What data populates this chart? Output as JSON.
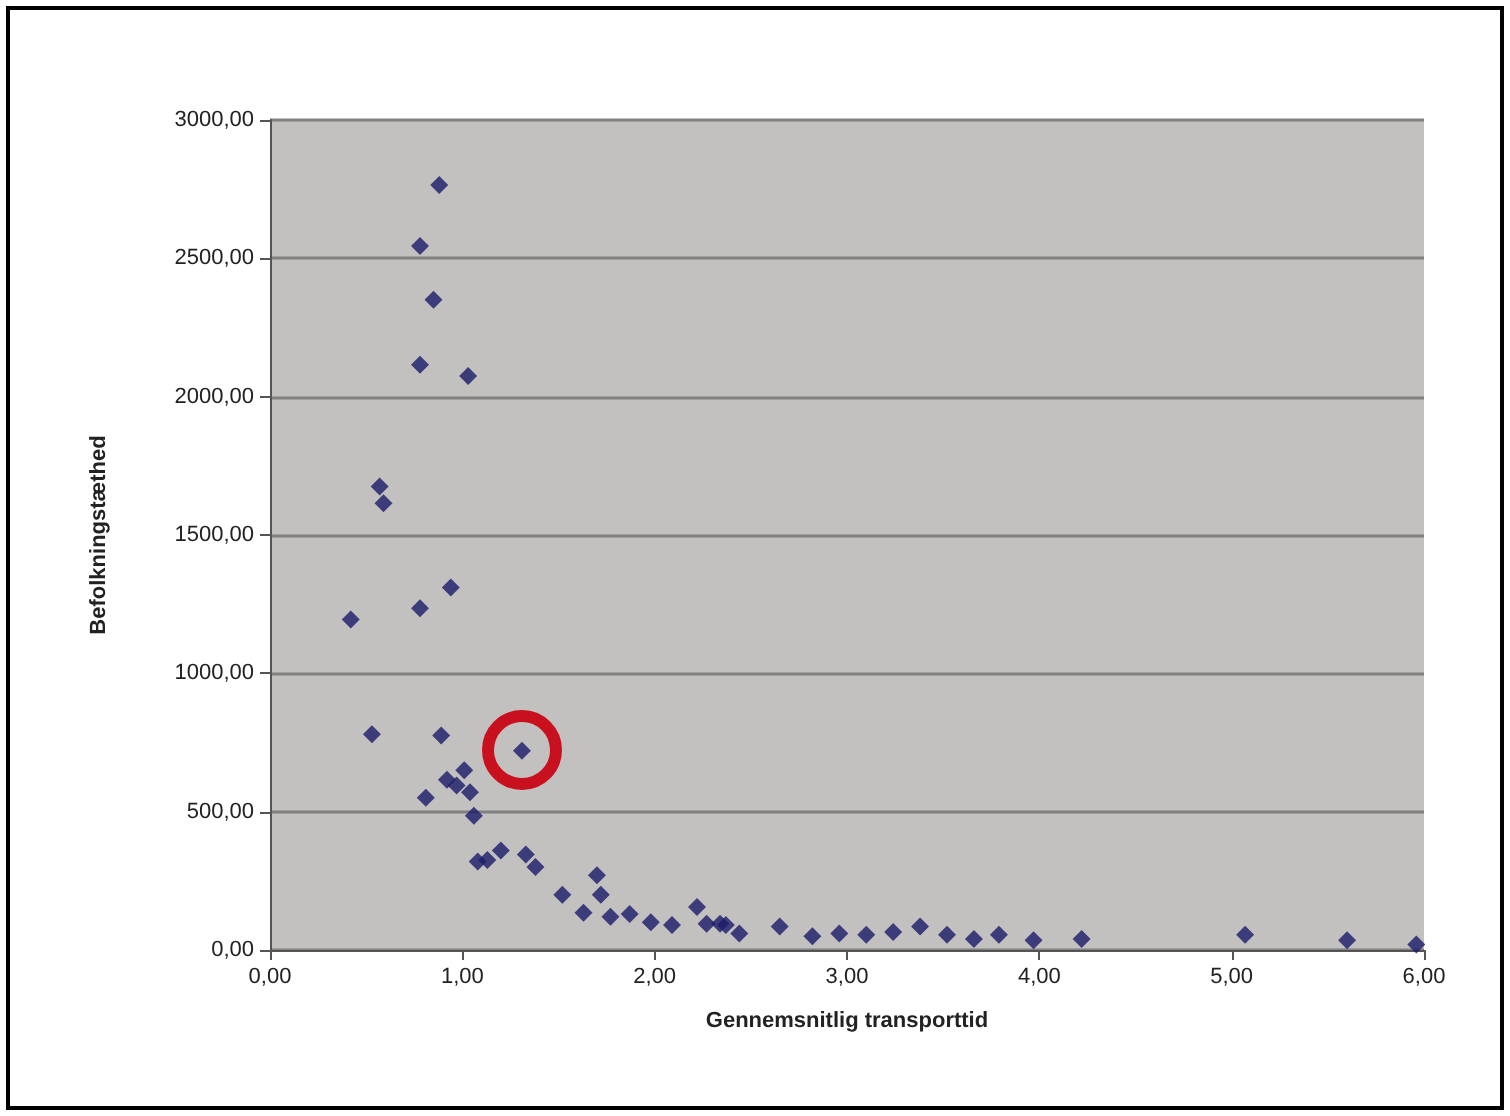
{
  "chart_data": {
    "type": "scatter",
    "xlabel": "Gennemsnitlig transporttid",
    "ylabel": "Befolkningstæthed",
    "marker": "diamond",
    "grid": "y",
    "xlim": [
      0,
      6
    ],
    "xticks": [
      {
        "value": 0,
        "label": "0,00"
      },
      {
        "value": 1,
        "label": "1,00"
      },
      {
        "value": 2,
        "label": "2,00"
      },
      {
        "value": 3,
        "label": "3,00"
      },
      {
        "value": 4,
        "label": "4,00"
      },
      {
        "value": 5,
        "label": "5,00"
      },
      {
        "value": 6,
        "label": "6,00"
      }
    ],
    "ylim": [
      0,
      3000
    ],
    "yticks": [
      {
        "value": 0,
        "label": "0,00"
      },
      {
        "value": 500,
        "label": "500,00"
      },
      {
        "value": 1000,
        "label": "1000,00"
      },
      {
        "value": 1500,
        "label": "1500,00"
      },
      {
        "value": 2000,
        "label": "2000,00"
      },
      {
        "value": 2500,
        "label": "2500,00"
      },
      {
        "value": 3000,
        "label": "3000,00"
      }
    ],
    "series": [
      {
        "color": "#1c1a6a",
        "x": [
          1.31,
          0.88,
          0.78,
          0.85,
          0.78,
          1.03,
          0.57,
          0.59,
          0.94,
          0.78,
          0.42,
          0.53,
          0.89,
          1.01,
          0.92,
          0.97,
          1.04,
          0.81,
          1.06,
          1.08,
          1.13,
          1.2,
          1.33,
          1.38,
          1.52,
          1.63,
          1.7,
          1.72,
          1.77,
          1.87,
          1.98,
          2.09,
          2.22,
          2.27,
          2.37,
          2.34,
          2.44,
          2.65,
          2.82,
          2.96,
          3.1,
          3.24,
          3.38,
          3.52,
          3.66,
          3.79,
          3.97,
          4.22,
          5.07,
          5.6,
          5.96
        ],
        "values": [
          720,
          2765,
          2545,
          2350,
          2115,
          2075,
          1675,
          1615,
          1310,
          1235,
          1195,
          780,
          775,
          650,
          615,
          595,
          570,
          550,
          485,
          320,
          325,
          360,
          345,
          300,
          200,
          135,
          270,
          200,
          120,
          130,
          100,
          90,
          155,
          95,
          90,
          95,
          60,
          85,
          50,
          60,
          55,
          65,
          85,
          55,
          40,
          55,
          35,
          40,
          55,
          35,
          20
        ]
      }
    ]
  }
}
